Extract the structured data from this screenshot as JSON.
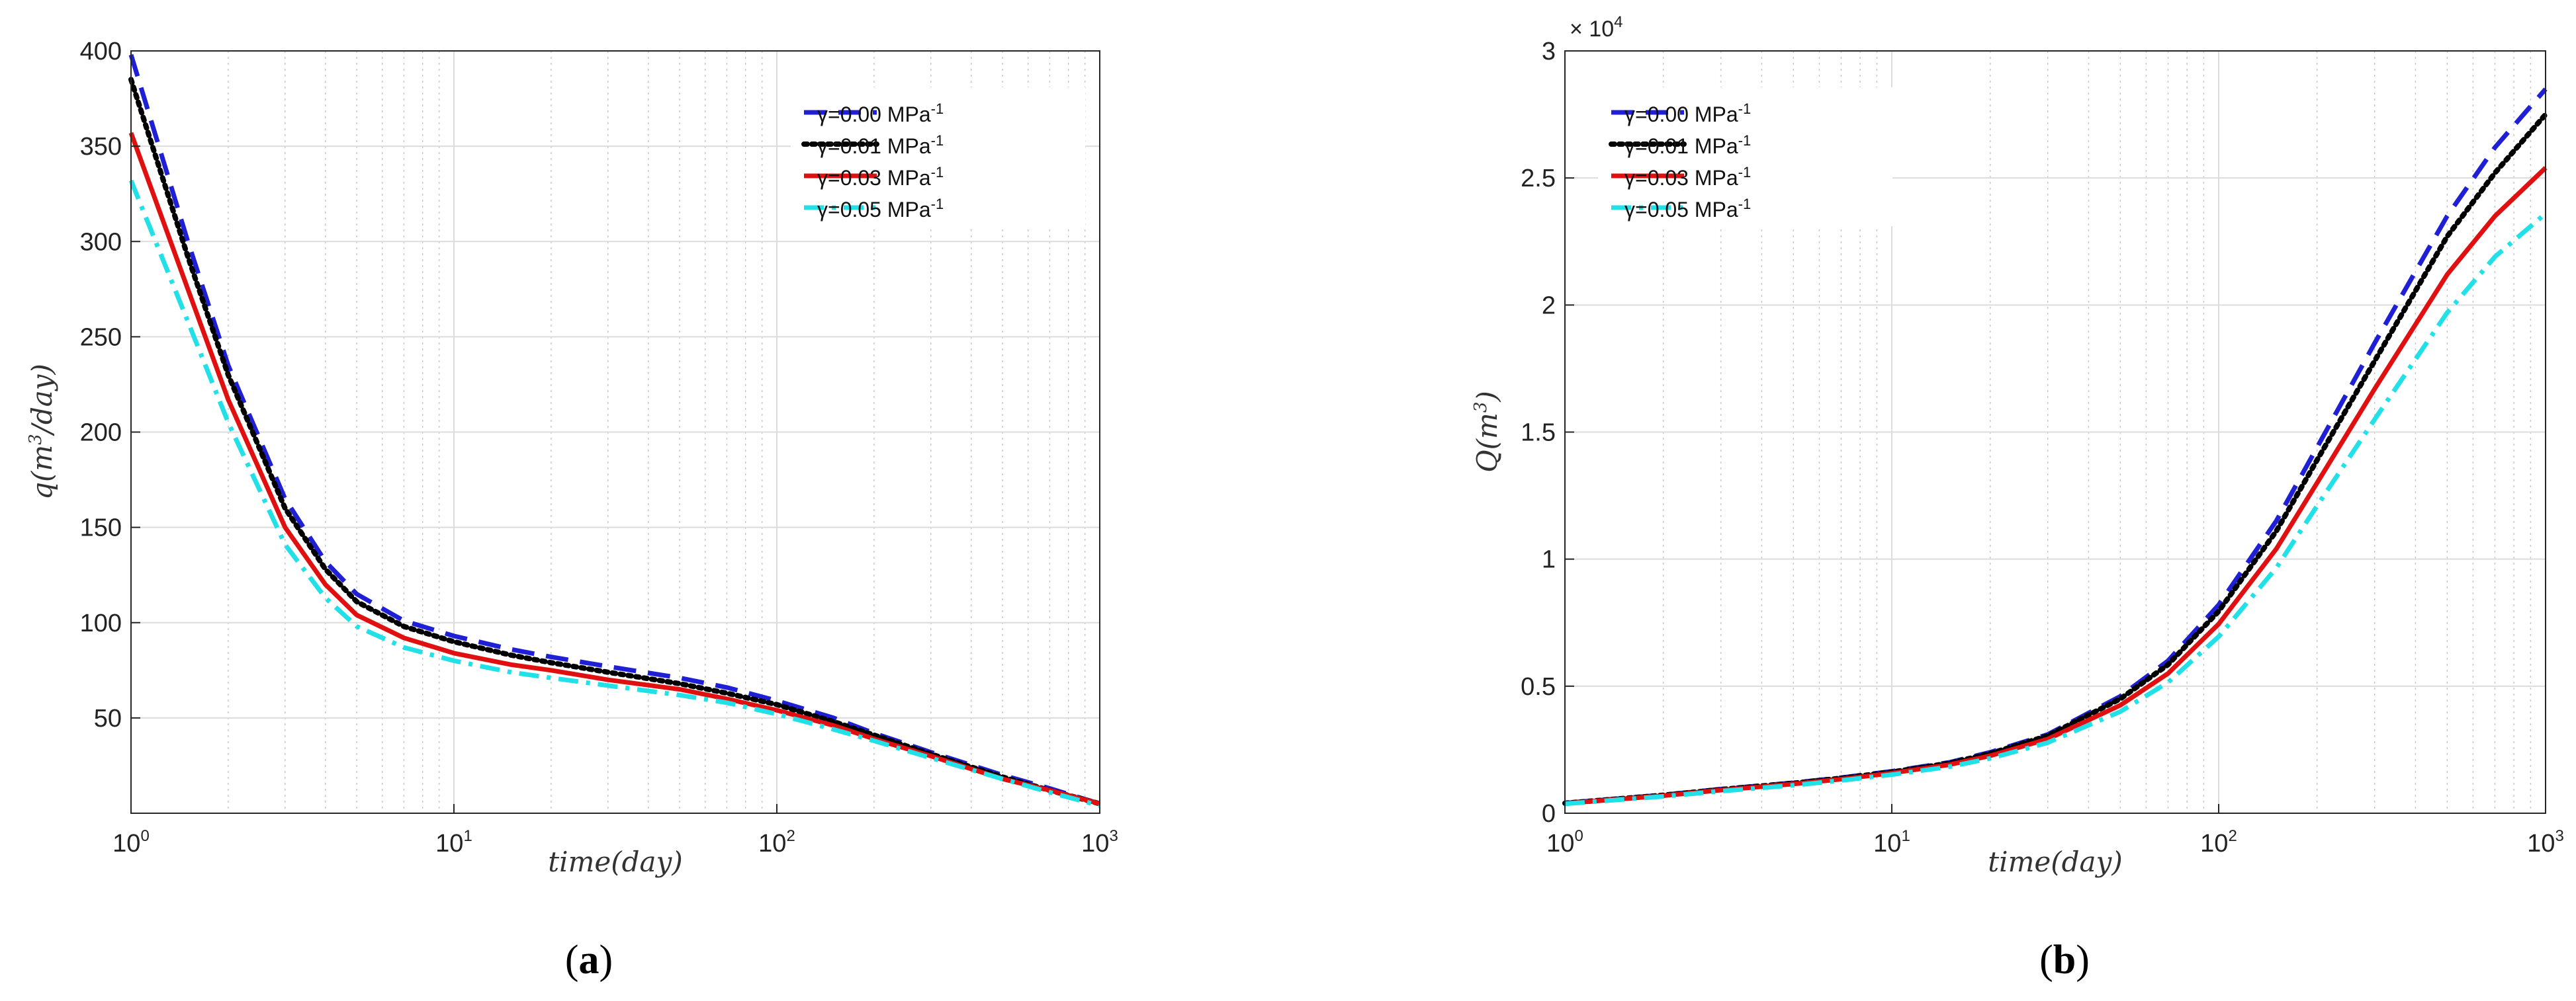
{
  "chart_data": [
    {
      "type": "line",
      "panel_caption_open": "(",
      "panel_caption_letter": "a",
      "panel_caption_close": ")",
      "xlabel": "time(day)",
      "ylabel_pre": "q(m",
      "ylabel_sup": "3",
      "ylabel_post": "/day)",
      "x_scale": "log",
      "xlim": [
        1,
        1000
      ],
      "ylim": [
        0,
        400
      ],
      "x_ticks": [
        {
          "base": "10",
          "exp": "0",
          "value": 1
        },
        {
          "base": "10",
          "exp": "1",
          "value": 10
        },
        {
          "base": "10",
          "exp": "2",
          "value": 100
        },
        {
          "base": "10",
          "exp": "3",
          "value": 1000
        }
      ],
      "y_ticks": [
        {
          "label": "50",
          "value": 50
        },
        {
          "label": "100",
          "value": 100
        },
        {
          "label": "150",
          "value": 150
        },
        {
          "label": "200",
          "value": 200
        },
        {
          "label": "250",
          "value": 250
        },
        {
          "label": "300",
          "value": 300
        },
        {
          "label": "350",
          "value": 350
        },
        {
          "label": "400",
          "value": 400
        }
      ],
      "grid": true,
      "legend_position": "top-right",
      "x": [
        1,
        1.5,
        2,
        3,
        4,
        5,
        7,
        10,
        15,
        20,
        30,
        50,
        70,
        100,
        150,
        200,
        300,
        500,
        700,
        1000
      ],
      "series": [
        {
          "name_pre": "γ=0.00 MPa",
          "name_sup": "-1",
          "color": "#1f1fd6",
          "style": "dashed",
          "values": [
            398,
            300,
            235,
            165,
            132,
            115,
            101,
            93,
            86,
            82,
            77,
            71,
            66,
            59,
            50,
            42,
            32,
            20,
            13,
            5
          ]
        },
        {
          "name_pre": "γ=0.01 MPa",
          "name_sup": "-1",
          "color": "#000000",
          "style": "dotted",
          "values": [
            385,
            292,
            230,
            160,
            128,
            111,
            98,
            90,
            83,
            79,
            74,
            68,
            63,
            57,
            48,
            41,
            31,
            19,
            12,
            5
          ]
        },
        {
          "name_pre": "γ=0.03 MPa",
          "name_sup": "-1",
          "color": "#e01010",
          "style": "solid",
          "values": [
            357,
            275,
            217,
            150,
            120,
            104,
            92,
            84,
            78,
            75,
            70,
            65,
            60,
            54,
            46,
            39,
            30,
            18,
            12,
            5
          ]
        },
        {
          "name_pre": "γ=0.05 MPa",
          "name_sup": "-1",
          "color": "#22e0e8",
          "style": "dashdot",
          "values": [
            332,
            258,
            205,
            141,
            113,
            98,
            87,
            80,
            74,
            71,
            67,
            62,
            58,
            52,
            44,
            38,
            29,
            18,
            11,
            4
          ]
        }
      ]
    },
    {
      "type": "line",
      "panel_caption_open": "(",
      "panel_caption_letter": "b",
      "panel_caption_close": ")",
      "xlabel": "time(day)",
      "ylabel_pre": "Q(m",
      "ylabel_sup": "3",
      "ylabel_post": ")",
      "multiplier_pre": "× 10",
      "multiplier_sup": "4",
      "x_scale": "log",
      "xlim": [
        1,
        1000
      ],
      "ylim": [
        0,
        30000
      ],
      "x_ticks": [
        {
          "base": "10",
          "exp": "0",
          "value": 1
        },
        {
          "base": "10",
          "exp": "1",
          "value": 10
        },
        {
          "base": "10",
          "exp": "2",
          "value": 100
        },
        {
          "base": "10",
          "exp": "3",
          "value": 1000
        }
      ],
      "y_ticks": [
        {
          "label": "0",
          "value": 0
        },
        {
          "label": "0.5",
          "value": 5000
        },
        {
          "label": "1",
          "value": 10000
        },
        {
          "label": "1.5",
          "value": 15000
        },
        {
          "label": "2",
          "value": 20000
        },
        {
          "label": "2.5",
          "value": 25000
        },
        {
          "label": "3",
          "value": 30000
        }
      ],
      "grid": true,
      "legend_position": "top-left",
      "x": [
        1,
        2,
        3,
        5,
        7,
        10,
        15,
        20,
        30,
        50,
        70,
        100,
        150,
        200,
        300,
        500,
        700,
        1000
      ],
      "series": [
        {
          "name_pre": "γ=0.00 MPa",
          "name_sup": "-1",
          "color": "#1f1fd6",
          "style": "dashed",
          "values": [
            400,
            720,
            950,
            1200,
            1400,
            1650,
            2000,
            2400,
            3100,
            4600,
            6000,
            8200,
            11500,
            14400,
            18500,
            23500,
            26200,
            28500
          ]
        },
        {
          "name_pre": "γ=0.01 MPa",
          "name_sup": "-1",
          "color": "#000000",
          "style": "dotted",
          "values": [
            395,
            710,
            935,
            1180,
            1380,
            1620,
            1970,
            2350,
            3050,
            4500,
            5850,
            7950,
            11100,
            13900,
            17800,
            22700,
            25200,
            27500
          ]
        },
        {
          "name_pre": "γ=0.03 MPa",
          "name_sup": "-1",
          "color": "#e01010",
          "style": "solid",
          "values": [
            385,
            690,
            910,
            1150,
            1340,
            1580,
            1910,
            2260,
            2920,
            4250,
            5500,
            7450,
            10400,
            13000,
            16700,
            21200,
            23500,
            25400
          ]
        },
        {
          "name_pre": "γ=0.05 MPa",
          "name_sup": "-1",
          "color": "#22e0e8",
          "style": "dashdot",
          "values": [
            370,
            660,
            870,
            1100,
            1290,
            1520,
            1830,
            2160,
            2780,
            4000,
            5150,
            6950,
            9650,
            12100,
            15500,
            19700,
            21900,
            23600
          ]
        }
      ]
    }
  ]
}
